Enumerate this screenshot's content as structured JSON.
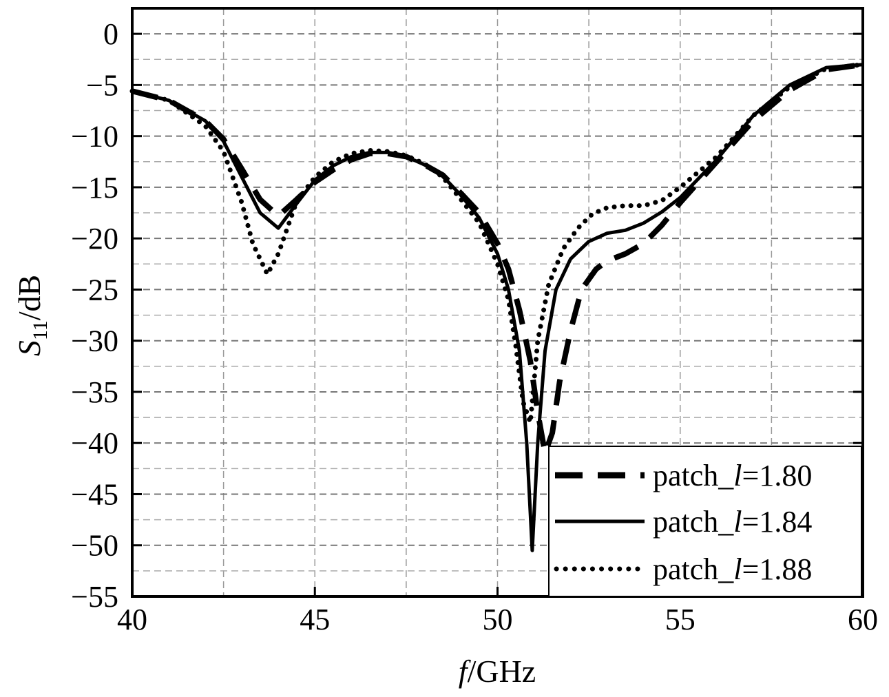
{
  "chart_data": {
    "type": "line",
    "xlabel": {
      "italic": "f",
      "rest": "/GHz"
    },
    "ylabel": {
      "italic": "S",
      "sub": "11",
      "rest": "/dB"
    },
    "xlim": [
      40,
      60
    ],
    "ylim": [
      -55,
      2.5
    ],
    "xticks": [
      40,
      45,
      50,
      55,
      60
    ],
    "yticks": [
      0,
      -5,
      -10,
      -15,
      -20,
      -25,
      -30,
      -35,
      -40,
      -45,
      -50,
      -55
    ],
    "grid": true,
    "legend_position": "bottom-right",
    "series": [
      {
        "name": "patch_l=1.80",
        "label_parts": {
          "pre": "patch_",
          "ital": "l",
          "post": "=1.80"
        },
        "style": "dashed",
        "x": [
          40,
          41,
          42,
          42.5,
          43,
          43.5,
          44,
          44.5,
          45,
          45.5,
          46,
          46.5,
          47,
          47.5,
          48,
          48.5,
          49,
          49.5,
          50,
          50.3,
          50.6,
          50.9,
          51.1,
          51.3,
          51.5,
          51.7,
          52,
          52.3,
          52.7,
          53,
          53.5,
          54,
          54.5,
          55,
          56,
          57,
          58,
          59,
          60
        ],
        "y": [
          -5.6,
          -6.5,
          -8.5,
          -10.3,
          -13.2,
          -16.2,
          -17.8,
          -16.2,
          -14.5,
          -13.3,
          -12.3,
          -11.7,
          -11.7,
          -12,
          -12.8,
          -13.8,
          -15.6,
          -17.5,
          -20.5,
          -23,
          -27,
          -32,
          -37,
          -41,
          -39,
          -34,
          -29,
          -25,
          -23,
          -22.2,
          -21.5,
          -20.5,
          -18.7,
          -16.5,
          -12.5,
          -8.5,
          -5.5,
          -3.5,
          -3
        ]
      },
      {
        "name": "patch_l=1.84",
        "label_parts": {
          "pre": "patch_",
          "ital": "l",
          "post": "=1.84"
        },
        "style": "solid",
        "x": [
          40,
          41,
          42,
          42.5,
          43,
          43.5,
          44,
          44.5,
          45,
          45.5,
          46,
          46.5,
          47,
          47.5,
          48,
          48.5,
          49,
          49.5,
          50,
          50.3,
          50.6,
          50.8,
          50.95,
          51.1,
          51.3,
          51.6,
          52,
          52.5,
          53,
          53.5,
          54,
          54.5,
          55,
          56,
          57,
          58,
          59,
          60
        ],
        "y": [
          -5.6,
          -6.5,
          -8.5,
          -10.5,
          -14,
          -17.5,
          -19,
          -16.6,
          -14.3,
          -12.9,
          -12,
          -11.6,
          -11.6,
          -12,
          -12.8,
          -13.9,
          -15.8,
          -18,
          -21.5,
          -25,
          -31,
          -40,
          -50.5,
          -40,
          -31,
          -25,
          -22,
          -20.3,
          -19.5,
          -19.2,
          -18.5,
          -17.4,
          -16,
          -12.3,
          -8,
          -5,
          -3.3,
          -3
        ]
      },
      {
        "name": "patch_l=1.88",
        "label_parts": {
          "pre": "patch_",
          "ital": "l",
          "post": "=1.88"
        },
        "style": "dotted",
        "x": [
          40,
          41,
          42,
          42.5,
          43,
          43.3,
          43.7,
          44,
          44.5,
          45,
          45.5,
          46,
          46.5,
          47,
          47.5,
          48,
          48.5,
          49,
          49.5,
          50,
          50.3,
          50.5,
          50.7,
          50.9,
          51.1,
          51.4,
          51.8,
          52.2,
          52.6,
          53,
          53.5,
          54,
          54.5,
          55,
          56,
          57,
          58,
          59,
          60
        ],
        "y": [
          -5.6,
          -6.5,
          -9,
          -11.5,
          -16.5,
          -20.5,
          -23.5,
          -21.5,
          -16.4,
          -14,
          -12.5,
          -11.7,
          -11.4,
          -11.5,
          -11.9,
          -12.7,
          -14,
          -16.2,
          -18.5,
          -22.5,
          -26,
          -30.5,
          -36,
          -38,
          -30,
          -24.5,
          -21,
          -19,
          -17.6,
          -17,
          -16.8,
          -16.8,
          -16.3,
          -15,
          -12,
          -8,
          -5.2,
          -3.4,
          -3
        ]
      }
    ]
  }
}
